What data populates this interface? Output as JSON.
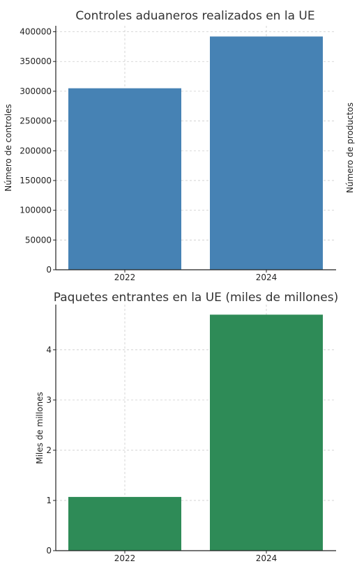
{
  "chart_data": [
    {
      "type": "bar",
      "title": "Controles aduaneros realizados en la UE",
      "xlabel": "",
      "ylabel": "Número de controles",
      "categories": [
        "2022",
        "2024"
      ],
      "values": [
        305000,
        392000
      ],
      "ylim": [
        0,
        410000
      ],
      "yticks": [
        0,
        50000,
        100000,
        150000,
        200000,
        250000,
        300000,
        350000,
        400000
      ],
      "color": "#4682b4",
      "grid": true
    },
    {
      "type": "bar",
      "title": "Paquetes entrantes en la UE (miles de millones)",
      "xlabel": "",
      "ylabel": "Miles de millones",
      "categories": [
        "2022",
        "2024"
      ],
      "values": [
        1.07,
        4.7
      ],
      "ylim": [
        0,
        4.9
      ],
      "yticks": [
        0,
        1,
        2,
        3,
        4
      ],
      "color": "#2e8b57",
      "grid": true
    }
  ],
  "side_label": "Número de productos"
}
